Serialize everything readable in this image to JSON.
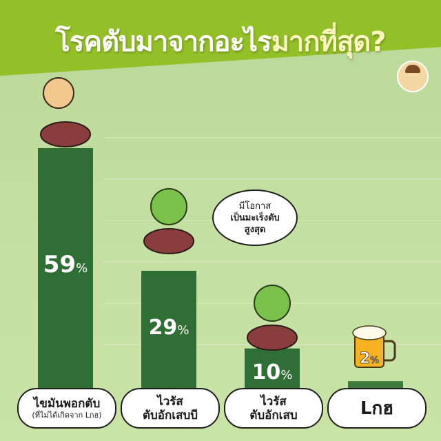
{
  "header": {
    "title_main": "โรคตับมาจากอะไร",
    "title_highlight": "มากที่สุด?"
  },
  "bubble": {
    "lines": [
      "มีโอกาส",
      "เป็นมะเร็งตับ",
      "สูงสุด"
    ]
  },
  "chart_data": {
    "type": "bar",
    "title": "โรคตับมาจากอะไรมากที่สุด?",
    "categories": [
      "ไขมันพอกตับ (ที่ไม่ได้เกิดจาก Lกฮ)",
      "ไวรัสตับอักเสบบี",
      "ไวรัสตับอักเสบ",
      "Lกฮ"
    ],
    "values": [
      59,
      29,
      10,
      2
    ],
    "unit": "%",
    "ylim": [
      0,
      60
    ],
    "grid": true,
    "labels": [
      {
        "main": "ไขมันพอกตับ",
        "sub": "(ที่ไม่ได้เกิดจาก Lกฮ)"
      },
      {
        "main": "ไวรัส",
        "sub": "ตับอักเสบบี"
      },
      {
        "main": "ไวรัส",
        "sub": "ตับอักเสบ"
      },
      {
        "main": "Lกฮ",
        "sub": ""
      }
    ],
    "value_labels": [
      "59",
      "29",
      "10",
      "2"
    ],
    "colors": {
      "bar": "#2f6e34",
      "bar_last": "#3e7a3e",
      "value_text": "#ffffff"
    }
  }
}
